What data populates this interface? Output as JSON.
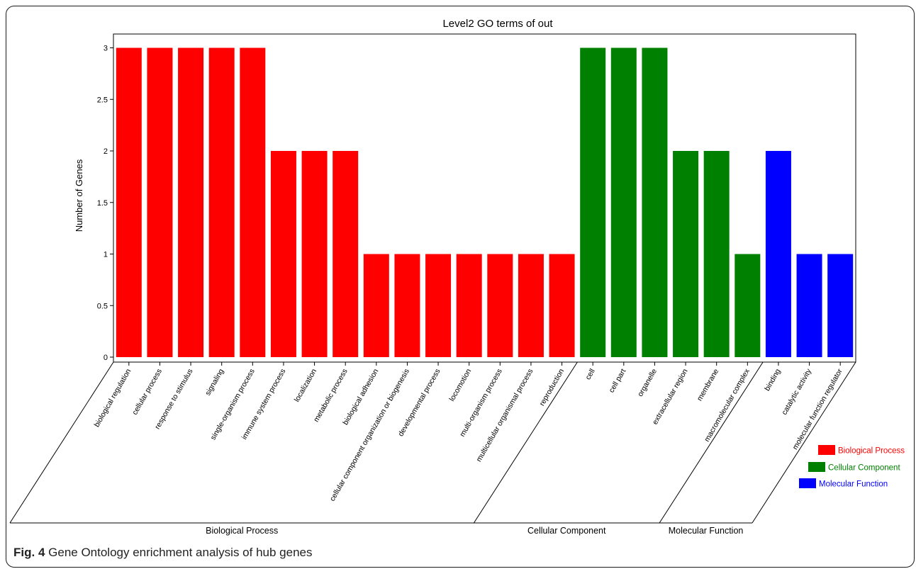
{
  "figure": {
    "label": "Fig. 4",
    "caption": "Gene Ontology enrichment analysis of hub genes"
  },
  "chart_data": {
    "type": "bar",
    "title": "Level2 GO terms of out",
    "ylabel": "Number of Genes",
    "xlabel": "",
    "ylim": [
      0,
      3.15
    ],
    "yticks": [
      "0",
      "0.5",
      "1",
      "1.5",
      "2",
      "2.5",
      "3"
    ],
    "grid": false,
    "legend_position": "bottom-right",
    "categories": [
      "biological regulation",
      "cellular process",
      "response to stimulus",
      "signaling",
      "single-organism process",
      "immune system process",
      "localization",
      "metabolic process",
      "biological adhesion",
      "cellular component organization or biogenesis",
      "developmental process",
      "locomotion",
      "multi-organism process",
      "multicellular organismal process",
      "reproduction",
      "cell",
      "cell part",
      "organelle",
      "extracellular region",
      "membrane",
      "macromolecular complex",
      "binding",
      "catalytic activity",
      "molecular function regulator"
    ],
    "values": [
      3,
      3,
      3,
      3,
      3,
      2,
      2,
      2,
      1,
      1,
      1,
      1,
      1,
      1,
      1,
      3,
      3,
      3,
      2,
      2,
      1,
      2,
      1,
      1
    ],
    "groups": [
      {
        "name": "Biological Process",
        "color": "#ff0000",
        "start": 0,
        "end": 14
      },
      {
        "name": "Cellular Component",
        "color": "#008000",
        "start": 15,
        "end": 20
      },
      {
        "name": "Molecular Function",
        "color": "#0000ff",
        "start": 21,
        "end": 23
      }
    ]
  }
}
